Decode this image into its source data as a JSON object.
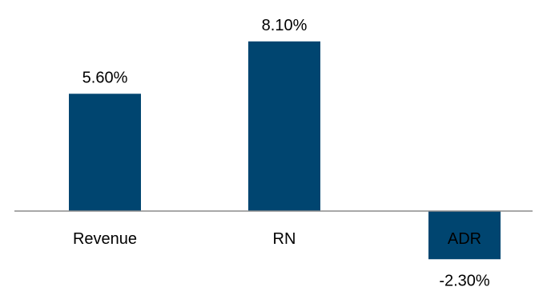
{
  "chart_data": {
    "type": "bar",
    "categories": [
      "Revenue",
      "RN",
      "ADR"
    ],
    "values": [
      5.6,
      8.1,
      -2.3
    ],
    "data_labels": [
      "5.60%",
      "8.10%",
      "-2.30%"
    ],
    "title": "",
    "xlabel": "",
    "ylabel": "",
    "bar_color": "#004570",
    "axis_color": "#8c8c8c",
    "grid": false,
    "legend": "none"
  }
}
